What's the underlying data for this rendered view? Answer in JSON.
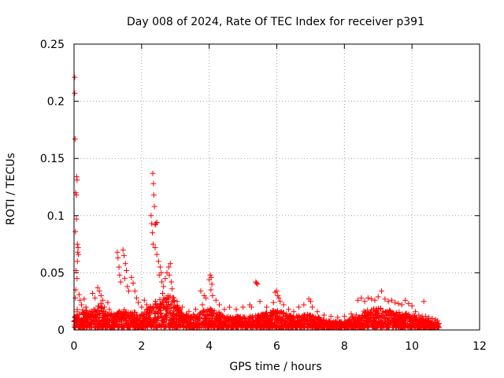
{
  "chart_data": {
    "type": "scatter",
    "title": "Day 008 of 2024, Rate Of TEC Index for receiver p391",
    "xlabel": "GPS time / hours",
    "ylabel": "ROTI / TECUs",
    "xlim": [
      0,
      12
    ],
    "ylim": [
      0,
      0.25
    ],
    "x_ticks": [
      0,
      2,
      4,
      6,
      8,
      10,
      12
    ],
    "x_tick_labels": [
      "0",
      "2",
      "4",
      "6",
      "8",
      "10",
      "12"
    ],
    "y_ticks": [
      0,
      0.05,
      0.1,
      0.15,
      0.2,
      0.25
    ],
    "y_tick_labels": [
      "0",
      "0.05",
      "0.1",
      "0.15",
      "0.2",
      "0.25"
    ],
    "grid": true,
    "marker": "+",
    "series": [
      {
        "name": "ROTI",
        "color": "#ff0000",
        "points": [
          [
            0.02,
            0.221
          ],
          [
            0.02,
            0.207
          ],
          [
            0.03,
            0.167
          ],
          [
            0.05,
            0.12
          ],
          [
            0.07,
            0.118
          ],
          [
            0.08,
            0.134
          ],
          [
            0.09,
            0.131
          ],
          [
            0.07,
            0.097
          ],
          [
            0.04,
            0.086
          ],
          [
            0.1,
            0.075
          ],
          [
            0.12,
            0.072
          ],
          [
            0.11,
            0.068
          ],
          [
            0.13,
            0.066
          ],
          [
            0.1,
            0.06
          ],
          [
            0.06,
            0.052
          ],
          [
            0.09,
            0.045
          ],
          [
            0.05,
            0.035
          ],
          [
            0.04,
            0.028
          ],
          [
            0.15,
            0.031
          ],
          [
            0.18,
            0.026
          ],
          [
            0.22,
            0.022
          ],
          [
            0.3,
            0.027
          ],
          [
            0.35,
            0.02
          ],
          [
            0.55,
            0.032
          ],
          [
            0.62,
            0.028
          ],
          [
            0.7,
            0.037
          ],
          [
            0.75,
            0.034
          ],
          [
            0.8,
            0.03
          ],
          [
            0.85,
            0.026
          ],
          [
            0.9,
            0.02
          ],
          [
            1.0,
            0.024
          ],
          [
            1.05,
            0.018
          ],
          [
            1.28,
            0.068
          ],
          [
            1.3,
            0.063
          ],
          [
            1.33,
            0.055
          ],
          [
            1.35,
            0.048
          ],
          [
            1.38,
            0.042
          ],
          [
            1.45,
            0.07
          ],
          [
            1.48,
            0.065
          ],
          [
            1.52,
            0.058
          ],
          [
            1.55,
            0.052
          ],
          [
            1.5,
            0.045
          ],
          [
            1.58,
            0.038
          ],
          [
            1.62,
            0.034
          ],
          [
            1.7,
            0.046
          ],
          [
            1.75,
            0.041
          ],
          [
            1.8,
            0.034
          ],
          [
            1.85,
            0.028
          ],
          [
            1.9,
            0.024
          ],
          [
            2.0,
            0.02
          ],
          [
            2.08,
            0.026
          ],
          [
            2.15,
            0.022
          ],
          [
            2.28,
            0.1
          ],
          [
            2.3,
            0.093
          ],
          [
            2.32,
            0.085
          ],
          [
            2.34,
            0.075
          ],
          [
            2.33,
            0.137
          ],
          [
            2.35,
            0.128
          ],
          [
            2.36,
            0.118
          ],
          [
            2.38,
            0.108
          ],
          [
            2.4,
            0.092
          ],
          [
            2.42,
            0.093
          ],
          [
            2.45,
            0.094
          ],
          [
            2.4,
            0.072
          ],
          [
            2.45,
            0.066
          ],
          [
            2.5,
            0.06
          ],
          [
            2.55,
            0.055
          ],
          [
            2.52,
            0.048
          ],
          [
            2.58,
            0.05
          ],
          [
            2.6,
            0.042
          ],
          [
            2.65,
            0.038
          ],
          [
            2.62,
            0.032
          ],
          [
            2.7,
            0.045
          ],
          [
            2.75,
            0.05
          ],
          [
            2.8,
            0.055
          ],
          [
            2.85,
            0.058
          ],
          [
            2.82,
            0.048
          ],
          [
            2.88,
            0.042
          ],
          [
            2.9,
            0.036
          ],
          [
            2.78,
            0.03
          ],
          [
            2.95,
            0.028
          ],
          [
            3.05,
            0.025
          ],
          [
            3.2,
            0.02
          ],
          [
            3.4,
            0.016
          ],
          [
            3.6,
            0.018
          ],
          [
            3.8,
            0.022
          ],
          [
            3.75,
            0.034
          ],
          [
            3.85,
            0.03
          ],
          [
            3.9,
            0.028
          ],
          [
            4.0,
            0.044
          ],
          [
            4.03,
            0.048
          ],
          [
            4.06,
            0.046
          ],
          [
            4.08,
            0.04
          ],
          [
            4.05,
            0.035
          ],
          [
            4.1,
            0.03
          ],
          [
            4.2,
            0.026
          ],
          [
            4.3,
            0.022
          ],
          [
            4.45,
            0.018
          ],
          [
            4.6,
            0.02
          ],
          [
            4.8,
            0.018
          ],
          [
            5.0,
            0.02
          ],
          [
            5.2,
            0.022
          ],
          [
            5.25,
            0.02
          ],
          [
            5.38,
            0.042
          ],
          [
            5.4,
            0.041
          ],
          [
            5.43,
            0.04
          ],
          [
            5.5,
            0.025
          ],
          [
            5.7,
            0.02
          ],
          [
            5.9,
            0.024
          ],
          [
            5.95,
            0.033
          ],
          [
            6.0,
            0.034
          ],
          [
            6.03,
            0.03
          ],
          [
            6.06,
            0.028
          ],
          [
            6.1,
            0.025
          ],
          [
            6.2,
            0.022
          ],
          [
            6.35,
            0.018
          ],
          [
            6.5,
            0.016
          ],
          [
            6.65,
            0.02
          ],
          [
            6.8,
            0.022
          ],
          [
            6.95,
            0.027
          ],
          [
            7.0,
            0.025
          ],
          [
            7.05,
            0.02
          ],
          [
            7.2,
            0.016
          ],
          [
            7.4,
            0.013
          ],
          [
            7.6,
            0.012
          ],
          [
            7.8,
            0.011
          ],
          [
            8.0,
            0.012
          ],
          [
            8.2,
            0.014
          ],
          [
            8.4,
            0.026
          ],
          [
            8.5,
            0.028
          ],
          [
            8.6,
            0.025
          ],
          [
            8.7,
            0.028
          ],
          [
            8.8,
            0.027
          ],
          [
            8.9,
            0.026
          ],
          [
            9.0,
            0.029
          ],
          [
            9.1,
            0.034
          ],
          [
            9.2,
            0.027
          ],
          [
            9.3,
            0.025
          ],
          [
            9.4,
            0.026
          ],
          [
            9.5,
            0.024
          ],
          [
            9.6,
            0.023
          ],
          [
            9.7,
            0.022
          ],
          [
            9.8,
            0.026
          ],
          [
            9.9,
            0.023
          ],
          [
            10.0,
            0.021
          ],
          [
            10.1,
            0.016
          ],
          [
            10.2,
            0.013
          ],
          [
            10.3,
            0.012
          ],
          [
            10.35,
            0.025
          ],
          [
            10.4,
            0.012
          ],
          [
            10.5,
            0.011
          ],
          [
            10.6,
            0.01
          ],
          [
            10.7,
            0.009
          ],
          [
            10.75,
            0.008
          ]
        ],
        "dense_band": {
          "x_start": 0.0,
          "x_end": 10.8,
          "envelope_x": [
            0,
            0.5,
            0.8,
            1.0,
            1.5,
            2.0,
            2.5,
            2.9,
            3.2,
            3.6,
            4.0,
            4.5,
            5.0,
            5.5,
            6.0,
            6.5,
            7.0,
            7.5,
            8.0,
            8.4,
            9.0,
            9.5,
            10.0,
            10.4,
            10.8
          ],
          "envelope_top": [
            0.02,
            0.016,
            0.024,
            0.014,
            0.018,
            0.014,
            0.028,
            0.03,
            0.015,
            0.014,
            0.02,
            0.012,
            0.012,
            0.013,
            0.018,
            0.012,
            0.014,
            0.008,
            0.007,
            0.015,
            0.02,
            0.016,
            0.014,
            0.009,
            0.006
          ],
          "envelope_bottom": 0.002
        }
      }
    ]
  }
}
